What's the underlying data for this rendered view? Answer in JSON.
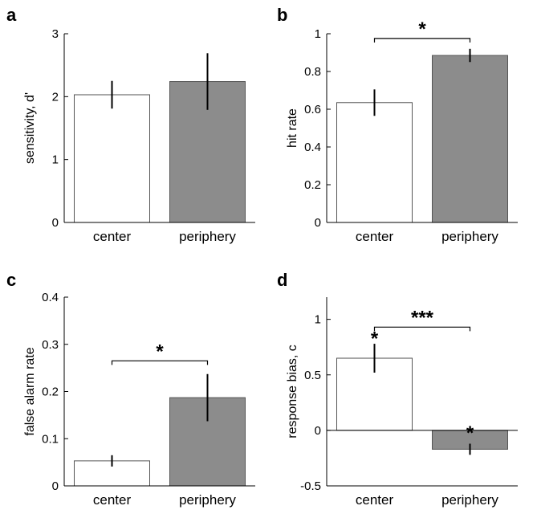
{
  "chart_data": [
    {
      "type": "bar",
      "panel": "a",
      "categories": [
        "center",
        "periphery"
      ],
      "values": [
        2.03,
        2.24
      ],
      "errors": [
        0.22,
        0.45
      ],
      "colors": [
        "#ffffff",
        "#8c8c8c"
      ],
      "ylabel": "sensitivity, d'",
      "ylim": [
        0,
        3
      ],
      "yticks": [
        "0",
        "1",
        "2",
        "3"
      ],
      "significance": []
    },
    {
      "type": "bar",
      "panel": "b",
      "categories": [
        "center",
        "periphery"
      ],
      "values": [
        0.635,
        0.885
      ],
      "errors": [
        0.07,
        0.035
      ],
      "colors": [
        "#ffffff",
        "#8c8c8c"
      ],
      "ylabel": "hit rate",
      "ylim": [
        0,
        1
      ],
      "yticks": [
        "0",
        "0.2",
        "0.4",
        "0.6",
        "0.8",
        "1"
      ],
      "significance": [
        {
          "type": "bracket",
          "from": 0,
          "to": 1,
          "y": 0.975,
          "label": "*"
        }
      ]
    },
    {
      "type": "bar",
      "panel": "c",
      "categories": [
        "center",
        "periphery"
      ],
      "values": [
        0.053,
        0.187
      ],
      "errors": [
        0.012,
        0.05
      ],
      "colors": [
        "#ffffff",
        "#8c8c8c"
      ],
      "ylabel": "false alarm rate",
      "ylim": [
        0,
        0.4
      ],
      "yticks": [
        "0",
        "0.1",
        "0.2",
        "0.3",
        "0.4"
      ],
      "significance": [
        {
          "type": "bracket",
          "from": 0,
          "to": 1,
          "y": 0.265,
          "label": "*"
        }
      ]
    },
    {
      "type": "bar",
      "panel": "d",
      "categories": [
        "center",
        "periphery"
      ],
      "values": [
        0.65,
        -0.17
      ],
      "errors": [
        0.13,
        0.05
      ],
      "colors": [
        "#ffffff",
        "#8c8c8c"
      ],
      "ylabel": "response bias, c",
      "ylim": [
        -0.5,
        1.2
      ],
      "yticks": [
        "-0.5",
        "0",
        "0.5",
        "1"
      ],
      "significance": [
        {
          "type": "bracket",
          "from": 0,
          "to": 1,
          "y": 0.93,
          "label": "***"
        },
        {
          "type": "marker",
          "bar": 0,
          "y": 0.87,
          "label": "*"
        },
        {
          "type": "marker",
          "bar": 1,
          "y": 0.02,
          "label": "*"
        }
      ]
    }
  ]
}
